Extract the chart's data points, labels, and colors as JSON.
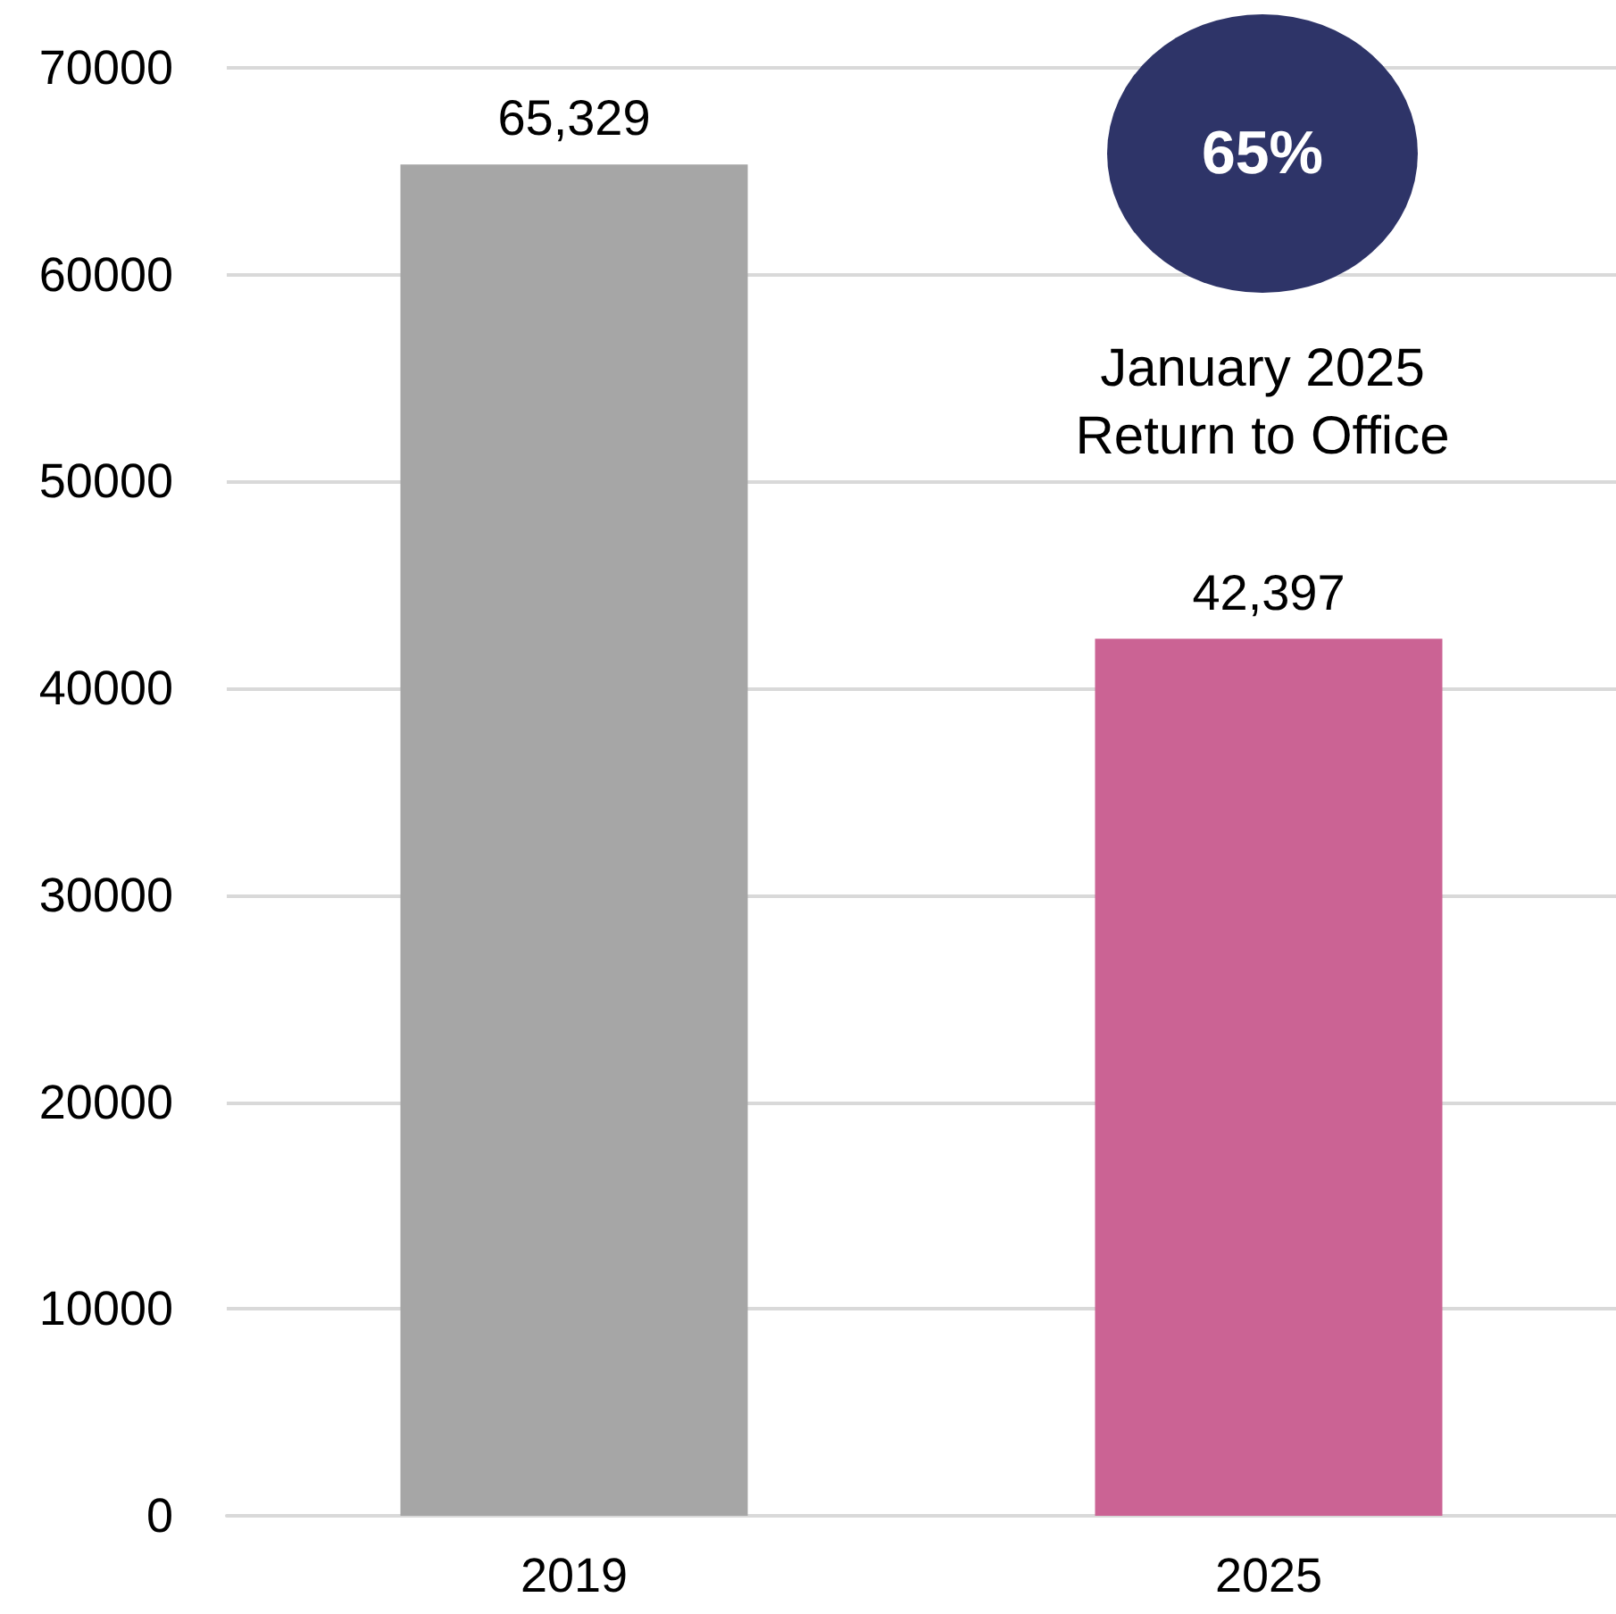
{
  "chart_data": {
    "type": "bar",
    "categories": [
      "2019",
      "2025"
    ],
    "values": [
      65329,
      42397
    ],
    "colors": [
      "#a6a6a6",
      "#cb6394"
    ],
    "value_labels": [
      "65,329",
      "42,397"
    ],
    "ylim": [
      0,
      70000
    ],
    "yticks": [
      0,
      10000,
      20000,
      30000,
      40000,
      50000,
      60000,
      70000
    ],
    "grid": "y",
    "annotations": [
      "65%",
      "January 2025\nReturn to Office"
    ]
  }
}
